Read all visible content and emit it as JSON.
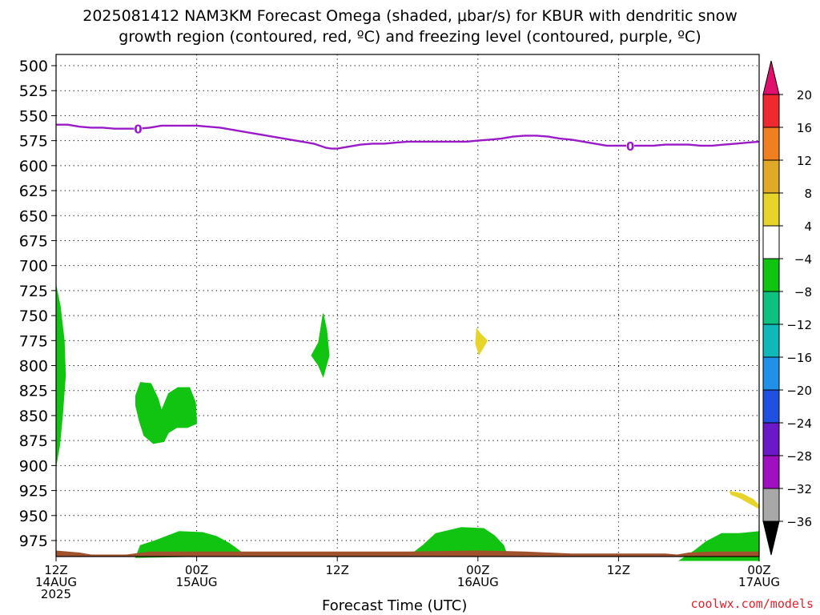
{
  "title_line1": "2025081412 NAM3KM Forecast Omega (shaded, μbar/s) for KBUR with dendritic snow",
  "title_line2": "growth region (contoured, red, ºC) and freezing level (contoured, purple, ºC)",
  "credit": "coolwx.com/models",
  "chart_data": {
    "type": "heatmap",
    "title": "2025081412 NAM3KM Forecast Omega (shaded, μbar/s) for KBUR with dendritic snow growth region (contoured, red, ºC) and freezing level (contoured, purple, ºC)",
    "xlabel": "Forecast Time (UTC)",
    "ylabel": "",
    "x_unit": "forecast hour",
    "xlim": [
      0,
      60
    ],
    "ylim": [
      990,
      495
    ],
    "y_ticks": [
      500,
      525,
      550,
      575,
      600,
      625,
      650,
      675,
      700,
      725,
      750,
      775,
      800,
      825,
      850,
      875,
      900,
      925,
      950,
      975
    ],
    "x_ticks": [
      {
        "x": 0,
        "lines": [
          "12Z",
          "14AUG",
          "2025"
        ]
      },
      {
        "x": 12,
        "lines": [
          "00Z",
          "15AUG"
        ]
      },
      {
        "x": 24,
        "lines": [
          "12Z"
        ]
      },
      {
        "x": 36,
        "lines": [
          "00Z",
          "16AUG"
        ]
      },
      {
        "x": 48,
        "lines": [
          "12Z"
        ]
      },
      {
        "x": 60,
        "lines": [
          "00Z",
          "17AUG"
        ]
      }
    ],
    "grid": true,
    "colorbar": {
      "labels": [
        "20",
        "16",
        "12",
        "8",
        "4",
        "−4",
        "−8",
        "−12",
        "−16",
        "−20",
        "−24",
        "−28",
        "−32",
        "−36"
      ],
      "colors": [
        "#e0116e",
        "#ee2a30",
        "#f07f1f",
        "#e0aa28",
        "#e6d42a",
        "#ffffff",
        "#12c412",
        "#10c080",
        "#10b8b8",
        "#2090e8",
        "#2050e0",
        "#6a18c8",
        "#a010c0",
        "#a8a8a8",
        "#000000"
      ]
    },
    "freezing_level": {
      "label": "0",
      "color": "#9b1ac8",
      "x": [
        0,
        1,
        2,
        3,
        4,
        5,
        6,
        7,
        8,
        9,
        10,
        11,
        12,
        13,
        14,
        15,
        16,
        17,
        18,
        19,
        20,
        21,
        22,
        23,
        23.5,
        24,
        25,
        26,
        27,
        28,
        29,
        30,
        31,
        32,
        33,
        34,
        35,
        36,
        37,
        38,
        39,
        40,
        41,
        42,
        43,
        44,
        45,
        46,
        47,
        48,
        49,
        50,
        51,
        52,
        53,
        54,
        55,
        56,
        57,
        58,
        59,
        60
      ],
      "y": [
        559,
        559,
        561,
        562,
        562,
        563,
        563,
        563,
        562,
        560,
        560,
        560,
        560,
        561,
        562,
        564,
        566,
        568,
        570,
        572,
        574,
        576,
        578,
        582,
        583,
        583,
        581,
        579,
        578,
        578,
        577,
        576,
        576,
        576,
        576,
        576,
        576,
        575,
        574,
        573,
        571,
        570,
        570,
        571,
        573,
        574,
        576,
        578,
        580,
        580,
        580,
        580,
        580,
        579,
        579,
        579,
        580,
        580,
        579,
        578,
        577,
        576
      ],
      "labeled_at": [
        7,
        49
      ]
    },
    "regions": [
      {
        "name": "omega-green-left-edge",
        "value_range": "-8 to -4",
        "color": "#12c412",
        "points": [
          [
            0,
            720
          ],
          [
            0.35,
            740
          ],
          [
            0.7,
            775
          ],
          [
            0.8,
            810
          ],
          [
            0.55,
            850
          ],
          [
            0.3,
            880
          ],
          [
            0,
            900
          ]
        ]
      },
      {
        "name": "omega-green-850",
        "value_range": "-8 to -4",
        "color": "#12c412",
        "points": [
          [
            6.8,
            830
          ],
          [
            7.2,
            817
          ],
          [
            8.1,
            818
          ],
          [
            8.7,
            833
          ],
          [
            9.0,
            845
          ],
          [
            9.6,
            828
          ],
          [
            10.4,
            822
          ],
          [
            11.4,
            822
          ],
          [
            11.9,
            837
          ],
          [
            12.0,
            858
          ],
          [
            11.2,
            862
          ],
          [
            10.3,
            862
          ],
          [
            9.6,
            867
          ],
          [
            9.2,
            876
          ],
          [
            8.3,
            878
          ],
          [
            7.5,
            870
          ],
          [
            7.1,
            855
          ],
          [
            6.8,
            840
          ]
        ]
      },
      {
        "name": "omega-green-12z",
        "value_range": "-8 to -4",
        "color": "#12c412",
        "points": [
          [
            22.8,
            748
          ],
          [
            23.1,
            765
          ],
          [
            23.3,
            790
          ],
          [
            22.8,
            811
          ],
          [
            22.4,
            800
          ],
          [
            21.8,
            790
          ],
          [
            22.4,
            777
          ]
        ]
      },
      {
        "name": "omega-yellow-16aug",
        "value_range": "4 to 8",
        "color": "#e6d42a",
        "points": [
          [
            35.9,
            763
          ],
          [
            36.2,
            768
          ],
          [
            36.8,
            775
          ],
          [
            36.1,
            789
          ],
          [
            35.8,
            778
          ]
        ]
      },
      {
        "name": "omega-yellow-right",
        "value_range": "4 to 8",
        "color": "#e6d42a",
        "points": [
          [
            57.5,
            926
          ],
          [
            58.5,
            928
          ],
          [
            59.5,
            934
          ],
          [
            60,
            940
          ],
          [
            60,
            943
          ],
          [
            59.2,
            938
          ],
          [
            58.3,
            932
          ],
          [
            57.6,
            929
          ]
        ]
      },
      {
        "name": "omega-green-sfc-1",
        "value_range": "-8 to -4",
        "color": "#12c412",
        "points": [
          [
            6.8,
            992
          ],
          [
            7.2,
            980
          ],
          [
            8.5,
            975
          ],
          [
            10.5,
            966
          ],
          [
            12.5,
            967
          ],
          [
            13.7,
            971
          ],
          [
            14.8,
            978
          ],
          [
            15.5,
            984
          ],
          [
            16.2,
            990
          ]
        ]
      },
      {
        "name": "omega-green-sfc-2",
        "value_range": "-8 to -4",
        "color": "#12c412",
        "points": [
          [
            30.2,
            990
          ],
          [
            31.3,
            980
          ],
          [
            32.4,
            968
          ],
          [
            34.6,
            962
          ],
          [
            36.5,
            963
          ],
          [
            37.4,
            970
          ],
          [
            38.2,
            980
          ],
          [
            38.5,
            990
          ]
        ]
      },
      {
        "name": "omega-green-sfc-3",
        "value_range": "-8 to -4",
        "color": "#12c412",
        "points": [
          [
            53.2,
            995
          ],
          [
            54.5,
            985
          ],
          [
            55.5,
            976
          ],
          [
            56.8,
            968
          ],
          [
            58.3,
            968
          ],
          [
            60,
            966
          ],
          [
            60,
            995
          ]
        ]
      }
    ],
    "terrain": {
      "color": "#a0522d",
      "x": [
        0,
        2,
        3,
        6,
        8,
        12,
        20,
        28,
        30,
        36,
        40,
        44,
        48,
        52,
        53,
        54,
        56,
        60
      ],
      "y": [
        985,
        987,
        989,
        989,
        986,
        986,
        986,
        986,
        986,
        985,
        986,
        988,
        988,
        988,
        989,
        987,
        986,
        986
      ]
    }
  }
}
